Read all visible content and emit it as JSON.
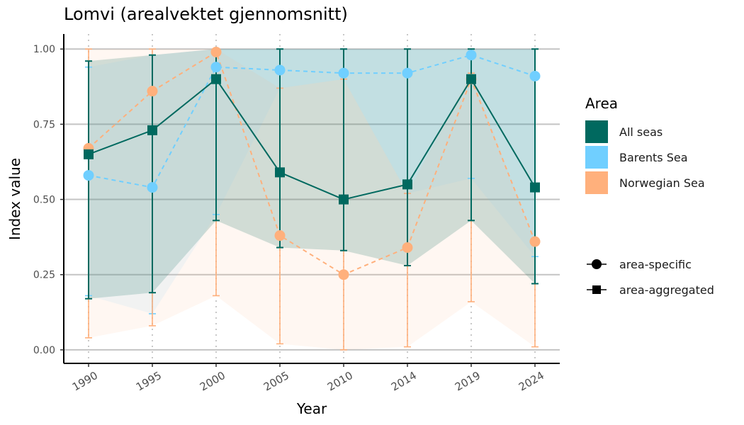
{
  "chart_data": {
    "type": "line",
    "title": "Lomvi (arealvektet gjennomsnitt)",
    "xlabel": "Year",
    "ylabel": "Index value",
    "categories": [
      "1990",
      "1995",
      "2000",
      "2005",
      "2010",
      "2014",
      "2019",
      "2024"
    ],
    "yticks": [
      "0.00",
      "0.25",
      "0.50",
      "0.75",
      "1.00"
    ],
    "ylim": [
      -0.045,
      1.05
    ],
    "grid": "horizontal major lines, vertical dotted lines at each year",
    "legend": {
      "placement": "right",
      "title": "Area",
      "fill_entries": [
        {
          "label": "All seas",
          "color": "#00695F"
        },
        {
          "label": "Barents Sea",
          "color": "#70CFFF"
        },
        {
          "label": "Norwegian Sea",
          "color": "#FFB07C"
        }
      ],
      "shape_entries": [
        {
          "label": "area-specific",
          "shape": "circle"
        },
        {
          "label": "area-aggregated",
          "shape": "square"
        }
      ]
    },
    "series": [
      {
        "name": "All seas",
        "color": "#00695F",
        "shape": "square",
        "linestyle": "solid",
        "values": [
          0.65,
          0.73,
          0.9,
          0.59,
          0.5,
          0.55,
          0.9,
          0.54
        ],
        "lower": [
          0.17,
          0.19,
          0.43,
          0.34,
          0.33,
          0.28,
          0.43,
          0.22
        ],
        "upper": [
          0.96,
          0.98,
          1.0,
          1.0,
          1.0,
          1.0,
          1.0,
          1.0
        ]
      },
      {
        "name": "Barents Sea",
        "color": "#70CFFF",
        "shape": "circle",
        "linestyle": "dashed",
        "values": [
          0.58,
          0.54,
          0.94,
          0.93,
          0.92,
          0.92,
          0.98,
          0.91
        ],
        "lower": [
          0.18,
          0.12,
          0.45,
          0.87,
          0.9,
          0.52,
          0.57,
          0.31
        ],
        "upper": [
          0.94,
          0.98,
          1.0,
          1.0,
          1.0,
          1.0,
          1.0,
          1.0
        ]
      },
      {
        "name": "Norwegian Sea",
        "color": "#FFB07C",
        "shape": "circle",
        "linestyle": "dashed",
        "values": [
          0.67,
          0.86,
          0.99,
          0.38,
          0.25,
          0.34,
          0.9,
          0.36
        ],
        "lower": [
          0.04,
          0.08,
          0.18,
          0.02,
          0.0,
          0.01,
          0.16,
          0.01
        ],
        "upper": [
          1.0,
          1.0,
          1.0,
          0.87,
          0.9,
          0.52,
          0.92,
          0.35
        ]
      }
    ]
  }
}
